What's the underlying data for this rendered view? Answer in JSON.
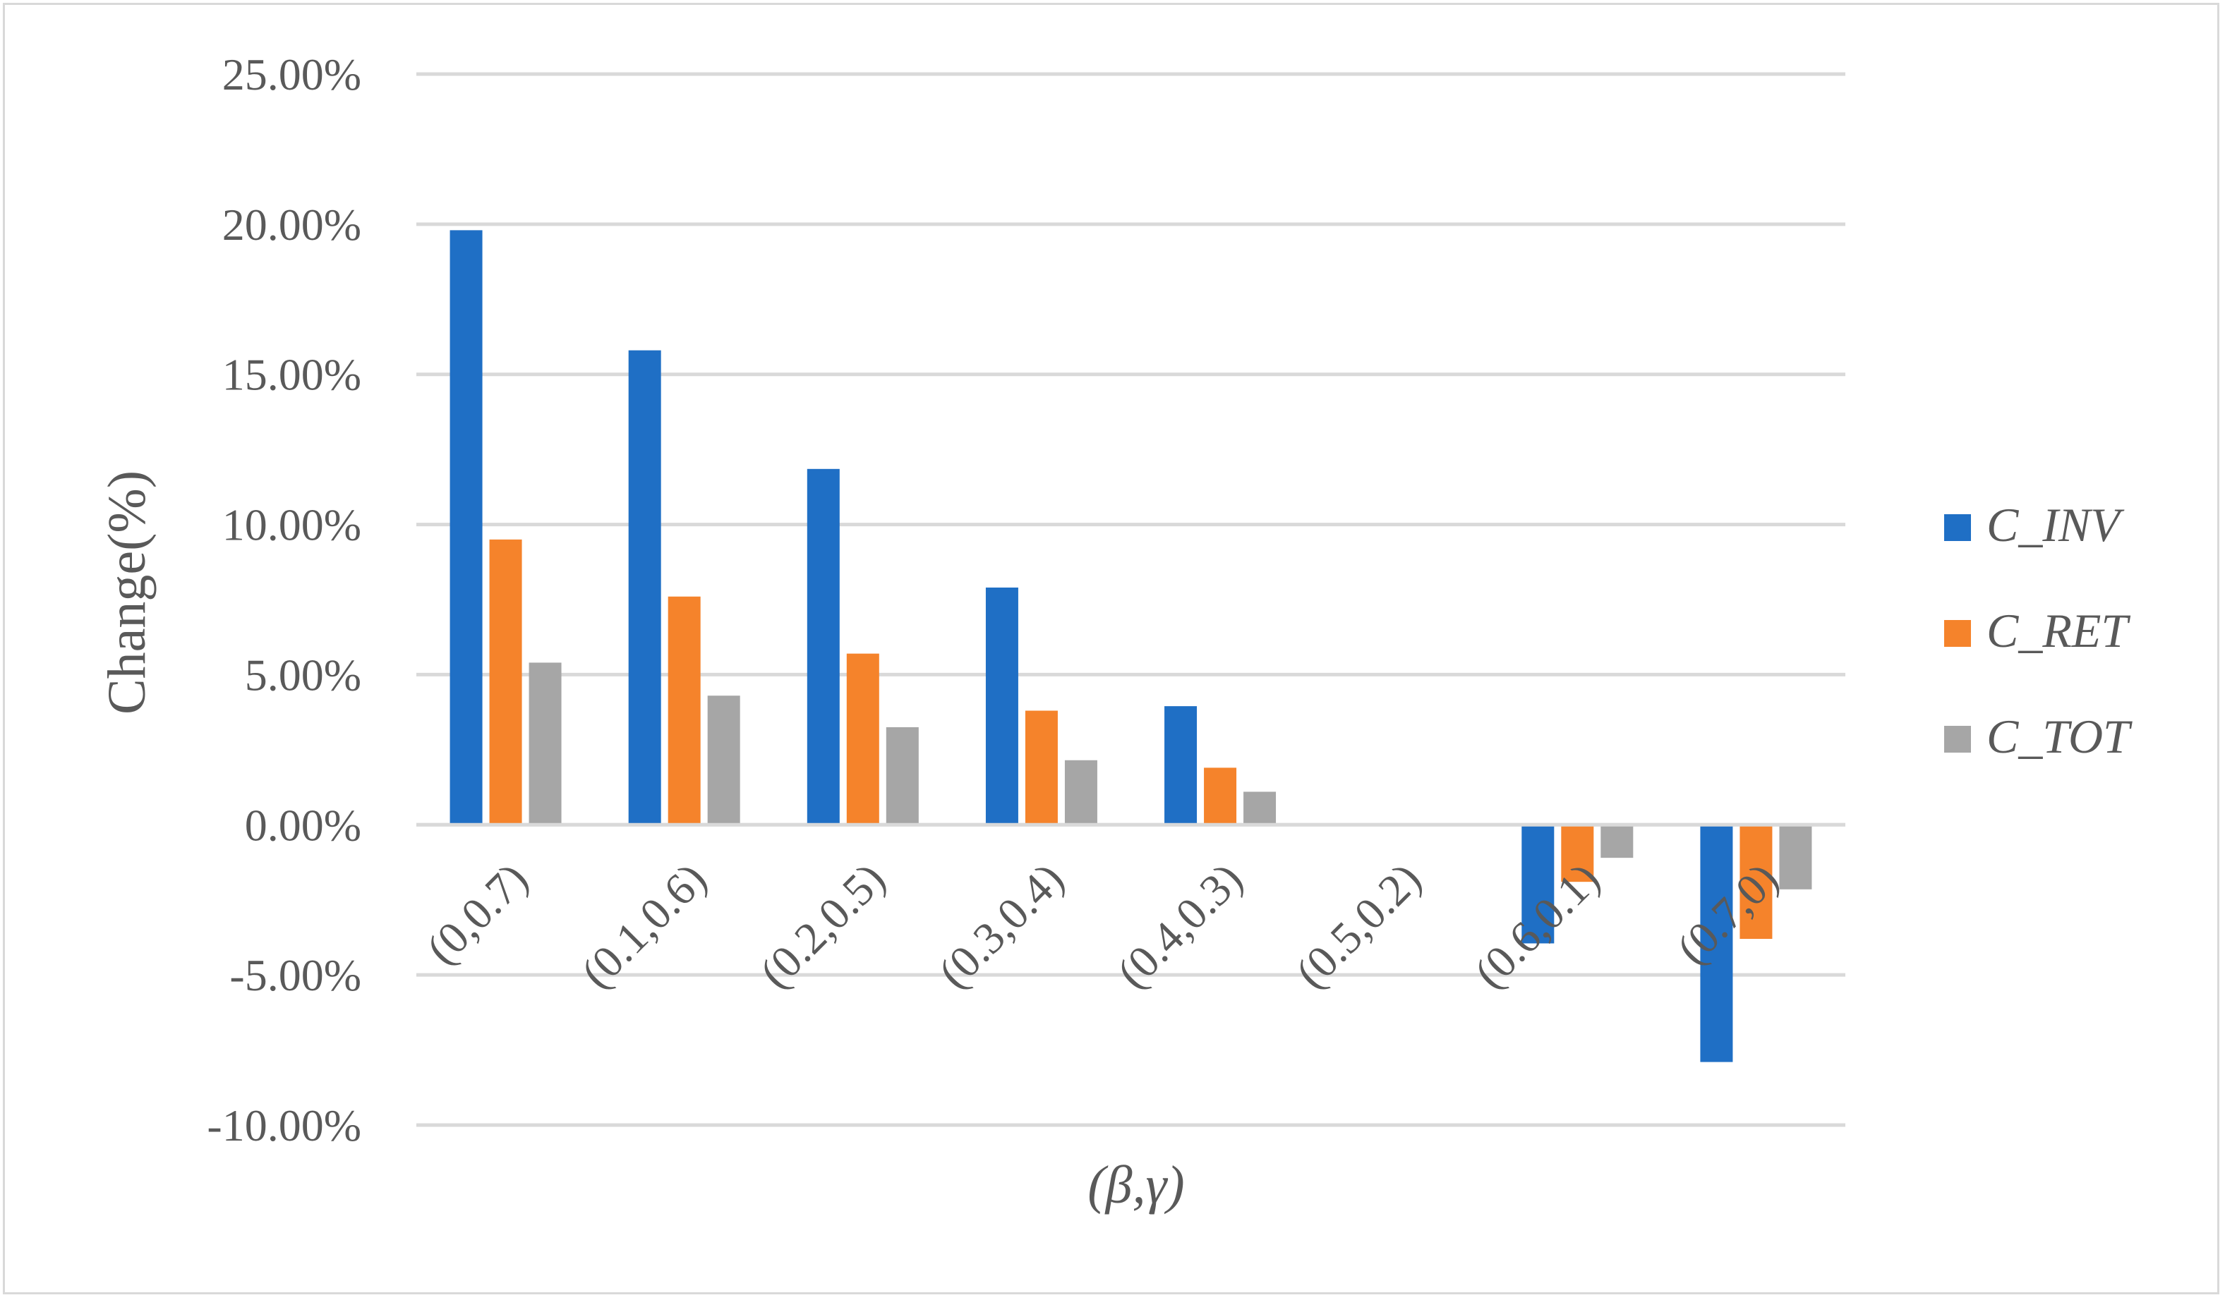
{
  "chart_data": {
    "type": "bar",
    "title": "",
    "xlabel": "(β,γ)",
    "ylabel": "Change(%)",
    "categories": [
      "(0,0.7)",
      "(0.1,0.6)",
      "(0.2,0.5)",
      "(0.3,0.4)",
      "(0.4,0.3)",
      "(0.5,0.2)",
      "(0.6,0.1)",
      "(0.7,0)"
    ],
    "series": [
      {
        "name": "C_INV",
        "color": "#1f6fc5",
        "values": [
          19.8,
          15.8,
          11.85,
          7.9,
          3.95,
          0,
          -3.95,
          -7.9
        ]
      },
      {
        "name": "C_RET",
        "color": "#f5832b",
        "values": [
          9.5,
          7.6,
          5.7,
          3.8,
          1.9,
          0,
          -1.9,
          -3.8
        ]
      },
      {
        "name": "C_TOT",
        "color": "#a6a6a6",
        "values": [
          5.4,
          4.3,
          3.25,
          2.15,
          1.1,
          0,
          -1.1,
          -2.15
        ]
      }
    ],
    "ylim": [
      -10,
      25
    ],
    "yticks": [
      "-10.00%",
      "-5.00%",
      "0.00%",
      "5.00%",
      "10.00%",
      "15.00%",
      "20.00%",
      "25.00%"
    ],
    "ytick_values": [
      -10,
      -5,
      0,
      5,
      10,
      15,
      20,
      25
    ],
    "grid": true,
    "legend_position": "right"
  }
}
